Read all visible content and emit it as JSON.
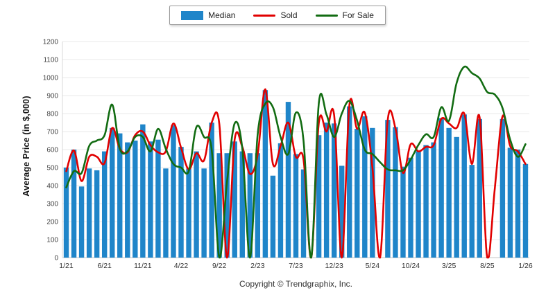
{
  "legend": {
    "items": [
      {
        "label": "Median",
        "swatch": "bar-swatch",
        "color": "#1f85c9"
      },
      {
        "label": "Sold",
        "swatch": "line-swatch",
        "color": "#e10000"
      },
      {
        "label": "For Sale",
        "swatch": "line-swatch",
        "color": "#126c12"
      }
    ]
  },
  "footer": {
    "copyright": "Copyright © Trendgraphix, Inc."
  },
  "chart_data": {
    "type": "combo",
    "title": "",
    "ylabel": "Average Price (in $,000)",
    "xlabel": "",
    "ylim": [
      0,
      1200
    ],
    "ytick_step": 100,
    "grid": true,
    "legend_position": "top-center",
    "x_tick_every": 5,
    "x_tick_labels": [
      "1/21",
      "6/21",
      "11/21",
      "4/22",
      "9/22",
      "2/23",
      "7/23",
      "12/23",
      "5/24",
      "10/24",
      "3/25",
      "8/25",
      "1/26"
    ],
    "x_labels": [
      "1/21",
      "2/21",
      "3/21",
      "4/21",
      "5/21",
      "6/21",
      "7/21",
      "8/21",
      "9/21",
      "10/21",
      "11/21",
      "12/21",
      "1/22",
      "2/22",
      "3/22",
      "4/22",
      "5/22",
      "6/22",
      "7/22",
      "8/22",
      "9/22",
      "10/22",
      "11/22",
      "12/22",
      "1/23",
      "2/23",
      "3/23",
      "4/23",
      "5/23",
      "6/23",
      "7/23",
      "8/23",
      "9/23",
      "10/23",
      "11/23",
      "12/23",
      "1/24",
      "2/24",
      "3/24",
      "4/24",
      "5/24",
      "6/24",
      "7/24",
      "8/24",
      "9/24",
      "10/24",
      "11/24",
      "12/24",
      "1/25",
      "2/25",
      "3/25",
      "4/25",
      "5/25",
      "6/25",
      "7/25",
      "8/25",
      "9/25",
      "10/25",
      "11/25",
      "12/25",
      "1/26"
    ],
    "series": [
      {
        "name": "Median",
        "type": "bar",
        "color": "#1f85c9",
        "values": [
          500,
          600,
          395,
          495,
          485,
          590,
          720,
          690,
          640,
          650,
          740,
          645,
          655,
          495,
          735,
          615,
          495,
          590,
          495,
          750,
          580,
          580,
          645,
          590,
          580,
          580,
          930,
          455,
          635,
          865,
          575,
          490,
          0,
          680,
          750,
          745,
          510,
          840,
          715,
          785,
          720,
          0,
          765,
          725,
          505,
          555,
          590,
          625,
          640,
          775,
          720,
          670,
          795,
          515,
          770,
          0,
          0,
          770,
          610,
          600,
          520
        ]
      },
      {
        "name": "Sold",
        "type": "line",
        "color": "#e10000",
        "values": [
          480,
          595,
          425,
          560,
          560,
          525,
          720,
          605,
          585,
          680,
          700,
          625,
          585,
          590,
          745,
          610,
          490,
          580,
          540,
          750,
          740,
          0,
          655,
          615,
          465,
          570,
          935,
          520,
          620,
          750,
          560,
          545,
          0,
          750,
          700,
          790,
          0,
          850,
          715,
          805,
          500,
          0,
          765,
          720,
          470,
          630,
          590,
          615,
          625,
          770,
          745,
          720,
          800,
          520,
          780,
          0,
          390,
          785,
          620,
          590,
          520
        ]
      },
      {
        "name": "For Sale",
        "type": "line",
        "color": "#126c12",
        "values": [
          390,
          480,
          470,
          620,
          650,
          680,
          850,
          605,
          590,
          670,
          670,
          590,
          715,
          605,
          520,
          500,
          480,
          725,
          670,
          600,
          0,
          420,
          745,
          605,
          0,
          680,
          855,
          835,
          670,
          575,
          805,
          650,
          0,
          860,
          795,
          670,
          800,
          870,
          760,
          600,
          575,
          530,
          490,
          485,
          485,
          545,
          625,
          685,
          670,
          835,
          760,
          970,
          1060,
          1025,
          995,
          920,
          905,
          830,
          655,
          560,
          630
        ]
      }
    ]
  }
}
